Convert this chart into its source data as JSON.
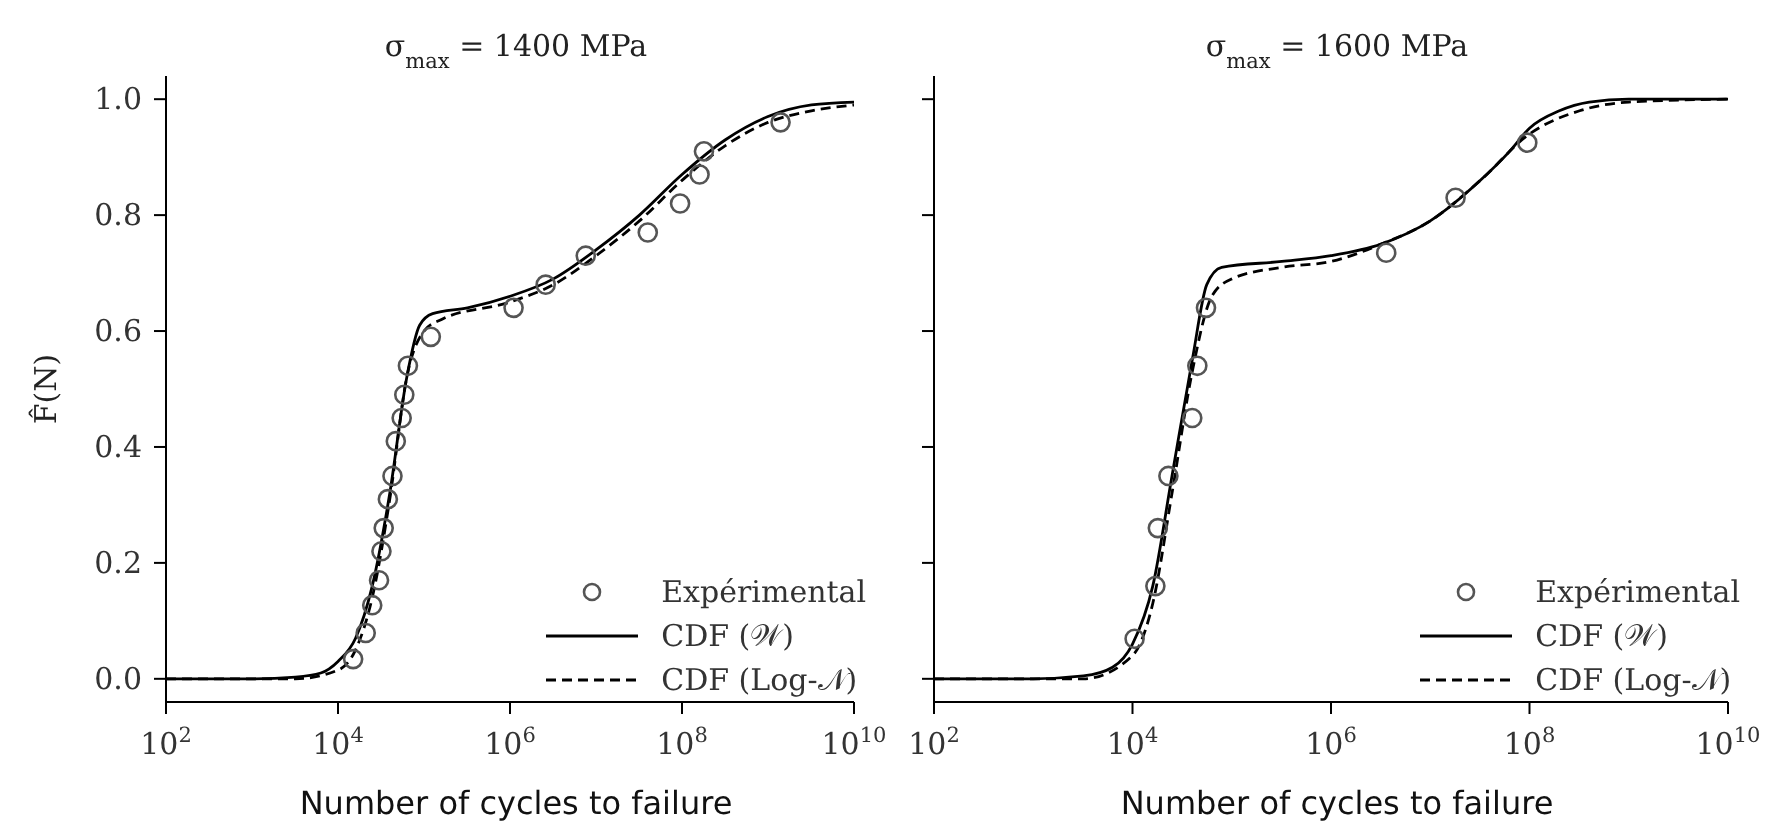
{
  "chart_data": [
    {
      "type": "scatter",
      "title": "σ$_{max}$ = 1400 MPa",
      "xlabel": "Number of cycles to failure",
      "ylabel": "F̂(N)",
      "log": "x",
      "xlim": [
        100,
        10000000000.0
      ],
      "ylim": [
        -0.04,
        1.04
      ],
      "xticks": [
        {
          "value": 100,
          "label": "10$^{2}$"
        },
        {
          "value": 10000.0,
          "label": "10$^{4}$"
        },
        {
          "value": 1000000.0,
          "label": "10$^{6}$"
        },
        {
          "value": 100000000.0,
          "label": "10$^{8}$"
        },
        {
          "value": 10000000000.0,
          "label": "10$^{10}$"
        }
      ],
      "yticks": [
        {
          "value": 0,
          "label": "0.0"
        },
        {
          "value": 0.2,
          "label": "0.2"
        },
        {
          "value": 0.4,
          "label": "0.4"
        },
        {
          "value": 0.6,
          "label": "0.6"
        },
        {
          "value": 0.8,
          "label": "0.8"
        },
        {
          "value": 1,
          "label": "1.0"
        }
      ],
      "legend": "bottom right",
      "series": [
        {
          "name": "Expérimental",
          "marker": "circle",
          "color": "#555555",
          "x": [
            15000.0,
            21000.0,
            25000.0,
            30000.0,
            32000.0,
            34000.0,
            38000.0,
            43000.0,
            47000.0,
            55000.0,
            59000.0,
            65000.0,
            120000.0,
            1100000.0,
            2600000.0,
            7600000.0,
            40000000.0,
            95000000.0,
            160000000.0,
            180000000.0,
            1400000000.0
          ],
          "values": [
            0.034,
            0.079,
            0.127,
            0.17,
            0.22,
            0.26,
            0.31,
            0.35,
            0.41,
            0.45,
            0.49,
            0.54,
            0.59,
            0.64,
            0.68,
            0.73,
            0.77,
            0.82,
            0.87,
            0.91,
            0.96
          ]
        },
        {
          "name": "CDF (𝒲)",
          "type": "line",
          "marker": "none",
          "line_style": "solid",
          "color": "#000000",
          "x": [
            100,
            1000,
            3200,
            6300,
            10000.0,
            16000.0,
            25000.0,
            40000.0,
            63000.0,
            89000.0,
            126000.0,
            320000.0,
            1000000.0,
            3200000.0,
            10000000.0,
            32000000.0,
            100000000.0,
            320000000.0,
            1000000000.0,
            3200000000.0,
            10000000000.0
          ],
          "values": [
            0,
            0,
            0.003,
            0.01,
            0.03,
            0.07,
            0.16,
            0.32,
            0.52,
            0.61,
            0.63,
            0.64,
            0.66,
            0.69,
            0.74,
            0.8,
            0.87,
            0.93,
            0.97,
            0.99,
            0.995
          ]
        },
        {
          "name": "CDF (Log-𝒩)",
          "type": "line",
          "marker": "none",
          "line_style": "dashed",
          "color": "#000000",
          "x": [
            100,
            1000,
            3200,
            10000.0,
            16000.0,
            25000.0,
            40000.0,
            63000.0,
            100000.0,
            160000.0,
            1000000.0,
            3200000.0,
            10000000.0,
            32000000.0,
            100000000.0,
            320000000.0,
            1000000000.0,
            3200000000.0,
            10000000000.0
          ],
          "values": [
            0,
            0,
            0,
            0.015,
            0.05,
            0.14,
            0.31,
            0.52,
            0.6,
            0.62,
            0.65,
            0.68,
            0.73,
            0.79,
            0.86,
            0.92,
            0.96,
            0.98,
            0.99
          ]
        }
      ]
    },
    {
      "type": "scatter",
      "title": "σ$_{max}$ = 1600 MPa",
      "xlabel": "Number of cycles to failure",
      "log": "x",
      "xlim": [
        100,
        10000000000.0
      ],
      "ylim": [
        -0.04,
        1.04
      ],
      "tick_labels": "x",
      "xticks": [
        {
          "value": 100,
          "label": "10$^{2}$"
        },
        {
          "value": 10000.0,
          "label": "10$^{4}$"
        },
        {
          "value": 1000000.0,
          "label": "10$^{6}$"
        },
        {
          "value": 100000000.0,
          "label": "10$^{8}$"
        },
        {
          "value": 10000000000.0,
          "label": "10$^{10}$"
        }
      ],
      "yticks": [
        {
          "value": 0,
          "label": null
        },
        {
          "value": 0.2,
          "label": null
        },
        {
          "value": 0.4,
          "label": null
        },
        {
          "value": 0.6,
          "label": null
        },
        {
          "value": 0.8,
          "label": null
        },
        {
          "value": 1,
          "label": null
        }
      ],
      "legend": "bottom right",
      "series": [
        {
          "name": "Expérimental",
          "marker": "circle",
          "color": "#555555",
          "x": [
            10500.0,
            17000.0,
            18000.0,
            23000.0,
            40000.0,
            45000.0,
            55000.0,
            3600000.0,
            18000000.0,
            95000000.0
          ],
          "values": [
            0.069,
            0.16,
            0.26,
            0.35,
            0.45,
            0.54,
            0.64,
            0.735,
            0.83,
            0.925
          ]
        },
        {
          "name": "CDF (𝒲)",
          "type": "line",
          "marker": "none",
          "line_style": "solid",
          "color": "#000000",
          "x": [
            100,
            1000,
            3200,
            6300,
            10000.0,
            16000.0,
            25000.0,
            40000.0,
            56000.0,
            79000.0,
            320000.0,
            1000000.0,
            3200000.0,
            10000000.0,
            32000000.0,
            63000000.0,
            100000000.0,
            200000000.0,
            400000000.0,
            1000000000.0,
            10000000000.0
          ],
          "values": [
            0,
            0,
            0.005,
            0.02,
            0.06,
            0.16,
            0.35,
            0.55,
            0.68,
            0.71,
            0.72,
            0.73,
            0.75,
            0.79,
            0.86,
            0.91,
            0.95,
            0.98,
            0.995,
            1,
            1
          ]
        },
        {
          "name": "CDF (Log-𝒩)",
          "type": "line",
          "marker": "none",
          "line_style": "dashed",
          "color": "#000000",
          "x": [
            100,
            1000,
            3200,
            10000.0,
            16000.0,
            25000.0,
            40000.0,
            63000.0,
            100000.0,
            320000.0,
            1000000.0,
            3200000.0,
            10000000.0,
            32000000.0,
            100000000.0,
            320000000.0,
            1000000000.0,
            10000000000.0
          ],
          "values": [
            0,
            0,
            0,
            0.04,
            0.13,
            0.32,
            0.53,
            0.66,
            0.69,
            0.71,
            0.72,
            0.75,
            0.79,
            0.86,
            0.94,
            0.98,
            0.995,
            1
          ]
        }
      ]
    }
  ]
}
